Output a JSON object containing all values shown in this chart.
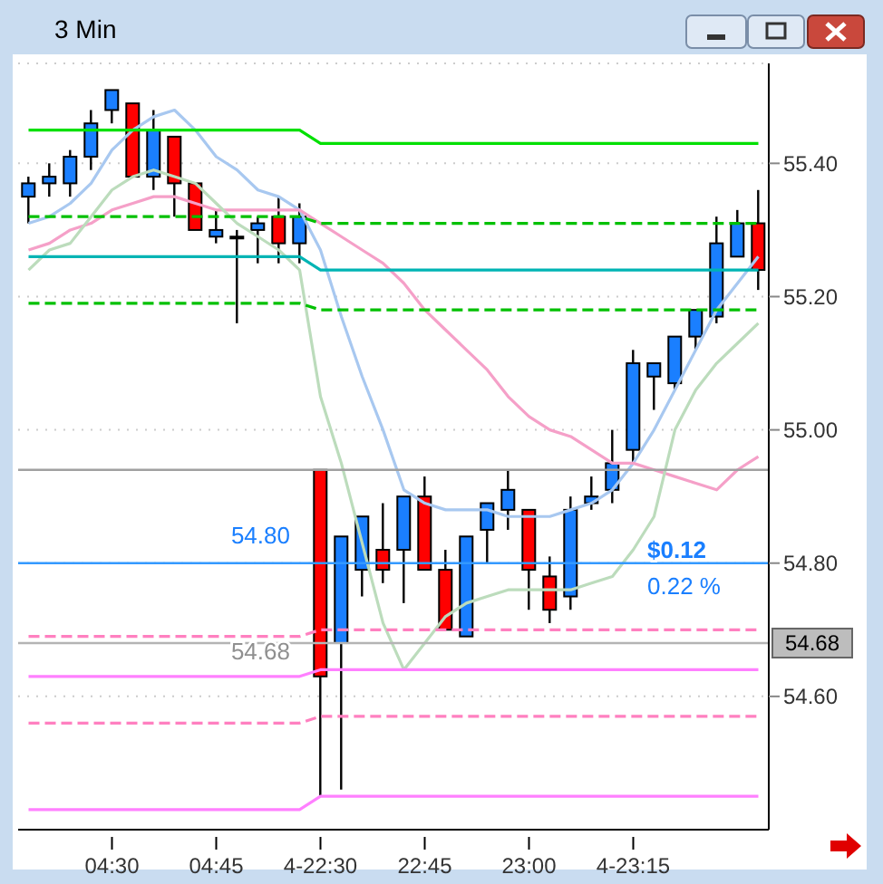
{
  "chart_data": {
    "type": "candlestick",
    "title": "3 Min",
    "categories": [
      null,
      null,
      null,
      null,
      "04:30",
      null,
      null,
      null,
      null,
      "04:45",
      null,
      null,
      null,
      null,
      "4-22:30",
      null,
      null,
      null,
      null,
      "22:45",
      null,
      null,
      null,
      null,
      "23:00",
      null,
      null,
      null,
      null,
      "4-23:15",
      null,
      null,
      null,
      null,
      null,
      null
    ],
    "ohlc": [
      [
        55.35,
        55.38,
        55.31,
        55.37
      ],
      [
        55.37,
        55.4,
        55.35,
        55.38
      ],
      [
        55.37,
        55.42,
        55.35,
        55.41
      ],
      [
        55.41,
        55.48,
        55.39,
        55.46
      ],
      [
        55.48,
        55.51,
        55.46,
        55.51
      ],
      [
        55.49,
        55.49,
        55.38,
        55.38
      ],
      [
        55.38,
        55.48,
        55.36,
        55.45
      ],
      [
        55.44,
        55.44,
        55.32,
        55.37
      ],
      [
        55.37,
        55.37,
        55.3,
        55.3
      ],
      [
        55.29,
        55.33,
        55.28,
        55.3
      ],
      [
        55.29,
        55.3,
        55.16,
        55.29
      ],
      [
        55.3,
        55.32,
        55.25,
        55.31
      ],
      [
        55.32,
        55.35,
        55.25,
        55.28
      ],
      [
        55.28,
        55.34,
        55.25,
        55.32
      ],
      [
        54.94,
        54.94,
        54.45,
        54.63
      ],
      [
        54.68,
        54.84,
        54.46,
        54.84
      ],
      [
        54.79,
        54.87,
        54.75,
        54.87
      ],
      [
        54.82,
        54.89,
        54.77,
        54.79
      ],
      [
        54.82,
        54.9,
        54.74,
        54.9
      ],
      [
        54.9,
        54.93,
        54.79,
        54.79
      ],
      [
        54.79,
        54.82,
        54.7,
        54.7
      ],
      [
        54.69,
        54.84,
        54.69,
        54.84
      ],
      [
        54.85,
        54.89,
        54.8,
        54.89
      ],
      [
        54.88,
        54.94,
        54.85,
        54.91
      ],
      [
        54.88,
        54.88,
        54.73,
        54.79
      ],
      [
        54.78,
        54.81,
        54.71,
        54.73
      ],
      [
        54.75,
        54.9,
        54.73,
        54.88
      ],
      [
        54.89,
        54.93,
        54.88,
        54.9
      ],
      [
        54.91,
        55.0,
        54.89,
        54.95
      ],
      [
        54.97,
        55.12,
        54.95,
        55.1
      ],
      [
        55.08,
        55.1,
        55.03,
        55.1
      ],
      [
        55.07,
        55.14,
        55.06,
        55.14
      ],
      [
        55.14,
        55.18,
        55.12,
        55.18
      ],
      [
        55.17,
        55.32,
        55.16,
        55.28
      ],
      [
        55.26,
        55.33,
        55.26,
        55.31
      ],
      [
        55.31,
        55.36,
        55.21,
        55.24
      ]
    ],
    "colors": [
      "#1a7fff",
      "#1a7fff",
      "#1a7fff",
      "#1a7fff",
      "#1a7fff",
      "#ff0000",
      "#1a7fff",
      "#ff0000",
      "#ff0000",
      "#1a7fff",
      "#000000",
      "#1a7fff",
      "#ff0000",
      "#1a7fff",
      "#ff0000",
      "#1a7fff",
      "#1a7fff",
      "#ff0000",
      "#1a7fff",
      "#ff0000",
      "#ff0000",
      "#1a7fff",
      "#1a7fff",
      "#1a7fff",
      "#ff0000",
      "#ff0000",
      "#1a7fff",
      "#1a7fff",
      "#1a7fff",
      "#1a7fff",
      "#1a7fff",
      "#1a7fff",
      "#1a7fff",
      "#1a7fff",
      "#1a7fff",
      "#ff0000"
    ],
    "series": [
      {
        "type": "line",
        "color": "#a8c8f0",
        "line_style": "solid",
        "values": [
          55.31,
          55.32,
          55.34,
          55.37,
          55.42,
          55.45,
          55.47,
          55.48,
          55.45,
          55.41,
          55.39,
          55.36,
          55.35,
          55.33,
          55.27,
          55.17,
          55.08,
          55.0,
          54.91,
          54.89,
          54.88,
          54.88,
          54.88,
          54.87,
          54.87,
          54.87,
          54.88,
          54.89,
          54.91,
          54.95,
          55.0,
          55.06,
          55.12,
          55.18,
          55.22,
          55.26
        ]
      },
      {
        "type": "line",
        "color": "#f5a0c8",
        "line_style": "solid",
        "values": [
          55.27,
          55.28,
          55.3,
          55.31,
          55.33,
          55.34,
          55.35,
          55.35,
          55.34,
          55.33,
          55.33,
          55.33,
          55.33,
          55.33,
          55.31,
          55.29,
          55.27,
          55.25,
          55.22,
          55.18,
          55.15,
          55.12,
          55.09,
          55.05,
          55.02,
          55.0,
          54.99,
          54.97,
          54.95,
          54.95,
          54.94,
          54.93,
          54.92,
          54.91,
          54.94,
          54.96
        ]
      },
      {
        "type": "line",
        "color": "#bcdcbc",
        "line_style": "solid",
        "values": [
          55.24,
          55.27,
          55.28,
          55.32,
          55.36,
          55.38,
          55.39,
          55.38,
          55.37,
          55.34,
          55.31,
          55.29,
          55.27,
          55.24,
          55.05,
          54.95,
          54.83,
          54.71,
          54.64,
          54.68,
          54.72,
          54.74,
          54.75,
          54.76,
          54.76,
          54.76,
          54.76,
          54.77,
          54.78,
          54.82,
          54.87,
          55.0,
          55.06,
          55.1,
          55.13,
          55.16
        ]
      },
      {
        "type": "line",
        "color": "#00e000",
        "line_style": "solid",
        "values": [
          55.45,
          55.45,
          55.45,
          55.45,
          55.45,
          55.45,
          55.45,
          55.45,
          55.45,
          55.45,
          55.45,
          55.45,
          55.45,
          55.45,
          55.43,
          55.43,
          55.43,
          55.43,
          55.43,
          55.43,
          55.43,
          55.43,
          55.43,
          55.43,
          55.43,
          55.43,
          55.43,
          55.43,
          55.43,
          55.43,
          55.43,
          55.43,
          55.43,
          55.43,
          55.43,
          55.43
        ]
      },
      {
        "type": "line",
        "color": "#00c000",
        "line_style": "dashed",
        "values": [
          55.32,
          55.32,
          55.32,
          55.32,
          55.32,
          55.32,
          55.32,
          55.32,
          55.32,
          55.32,
          55.32,
          55.32,
          55.32,
          55.32,
          55.31,
          55.31,
          55.31,
          55.31,
          55.31,
          55.31,
          55.31,
          55.31,
          55.31,
          55.31,
          55.31,
          55.31,
          55.31,
          55.31,
          55.31,
          55.31,
          55.31,
          55.31,
          55.31,
          55.31,
          55.31,
          55.31
        ]
      },
      {
        "type": "line",
        "color": "#00b4b4",
        "line_style": "solid",
        "values": [
          55.26,
          55.26,
          55.26,
          55.26,
          55.26,
          55.26,
          55.26,
          55.26,
          55.26,
          55.26,
          55.26,
          55.26,
          55.26,
          55.26,
          55.24,
          55.24,
          55.24,
          55.24,
          55.24,
          55.24,
          55.24,
          55.24,
          55.24,
          55.24,
          55.24,
          55.24,
          55.24,
          55.24,
          55.24,
          55.24,
          55.24,
          55.24,
          55.24,
          55.24,
          55.24,
          55.24
        ]
      },
      {
        "type": "line",
        "color": "#00c000",
        "line_style": "dashed",
        "values": [
          55.19,
          55.19,
          55.19,
          55.19,
          55.19,
          55.19,
          55.19,
          55.19,
          55.19,
          55.19,
          55.19,
          55.19,
          55.19,
          55.19,
          55.18,
          55.18,
          55.18,
          55.18,
          55.18,
          55.18,
          55.18,
          55.18,
          55.18,
          55.18,
          55.18,
          55.18,
          55.18,
          55.18,
          55.18,
          55.18,
          55.18,
          55.18,
          55.18,
          55.18,
          55.18,
          55.18
        ]
      },
      {
        "type": "line",
        "color": "#ff80c0",
        "line_style": "dashed",
        "values": [
          54.69,
          54.69,
          54.69,
          54.69,
          54.69,
          54.69,
          54.69,
          54.69,
          54.69,
          54.69,
          54.69,
          54.69,
          54.69,
          54.69,
          54.7,
          54.7,
          54.7,
          54.7,
          54.7,
          54.7,
          54.7,
          54.7,
          54.7,
          54.7,
          54.7,
          54.7,
          54.7,
          54.7,
          54.7,
          54.7,
          54.7,
          54.7,
          54.7,
          54.7,
          54.7,
          54.7
        ]
      },
      {
        "type": "line",
        "color": "#ff80ff",
        "line_style": "solid",
        "values": [
          54.63,
          54.63,
          54.63,
          54.63,
          54.63,
          54.63,
          54.63,
          54.63,
          54.63,
          54.63,
          54.63,
          54.63,
          54.63,
          54.63,
          54.64,
          54.64,
          54.64,
          54.64,
          54.64,
          54.64,
          54.64,
          54.64,
          54.64,
          54.64,
          54.64,
          54.64,
          54.64,
          54.64,
          54.64,
          54.64,
          54.64,
          54.64,
          54.64,
          54.64,
          54.64,
          54.64
        ]
      },
      {
        "type": "line",
        "color": "#ff80c0",
        "line_style": "dashed",
        "values": [
          54.56,
          54.56,
          54.56,
          54.56,
          54.56,
          54.56,
          54.56,
          54.56,
          54.56,
          54.56,
          54.56,
          54.56,
          54.56,
          54.56,
          54.57,
          54.57,
          54.57,
          54.57,
          54.57,
          54.57,
          54.57,
          54.57,
          54.57,
          54.57,
          54.57,
          54.57,
          54.57,
          54.57,
          54.57,
          54.57,
          54.57,
          54.57,
          54.57,
          54.57,
          54.57,
          54.57
        ]
      },
      {
        "type": "line",
        "color": "#ff80ff",
        "line_style": "solid",
        "values": [
          54.43,
          54.43,
          54.43,
          54.43,
          54.43,
          54.43,
          54.43,
          54.43,
          54.43,
          54.43,
          54.43,
          54.43,
          54.43,
          54.43,
          54.45,
          54.45,
          54.45,
          54.45,
          54.45,
          54.45,
          54.45,
          54.45,
          54.45,
          54.45,
          54.45,
          54.45,
          54.45,
          54.45,
          54.45,
          54.45,
          54.45,
          54.45,
          54.45,
          54.45,
          54.45,
          54.45
        ]
      }
    ],
    "ref_lines": [
      {
        "axis": "y",
        "value": 54.94,
        "label": null,
        "color": "#a0a0a0",
        "line_style": "solid"
      },
      {
        "axis": "y",
        "value": 54.8,
        "label": null,
        "color": "#3399ff",
        "line_style": "solid"
      },
      {
        "axis": "y",
        "value": 54.68,
        "label": "54.68",
        "color": "#b4b4b4",
        "line_style": "solid"
      }
    ],
    "annotations": [
      "$0.12",
      "0.22 %",
      "54.80",
      "54.68"
    ],
    "ylim": [
      54.4,
      55.55
    ],
    "yticks": [
      {
        "value": 54.6,
        "label": "54.60"
      },
      {
        "value": 54.8,
        "label": "54.80"
      },
      {
        "value": 55,
        "label": "55.00"
      },
      {
        "value": 55.2,
        "label": "55.20"
      },
      {
        "value": 55.4,
        "label": "55.40"
      }
    ],
    "grid": "y"
  }
}
